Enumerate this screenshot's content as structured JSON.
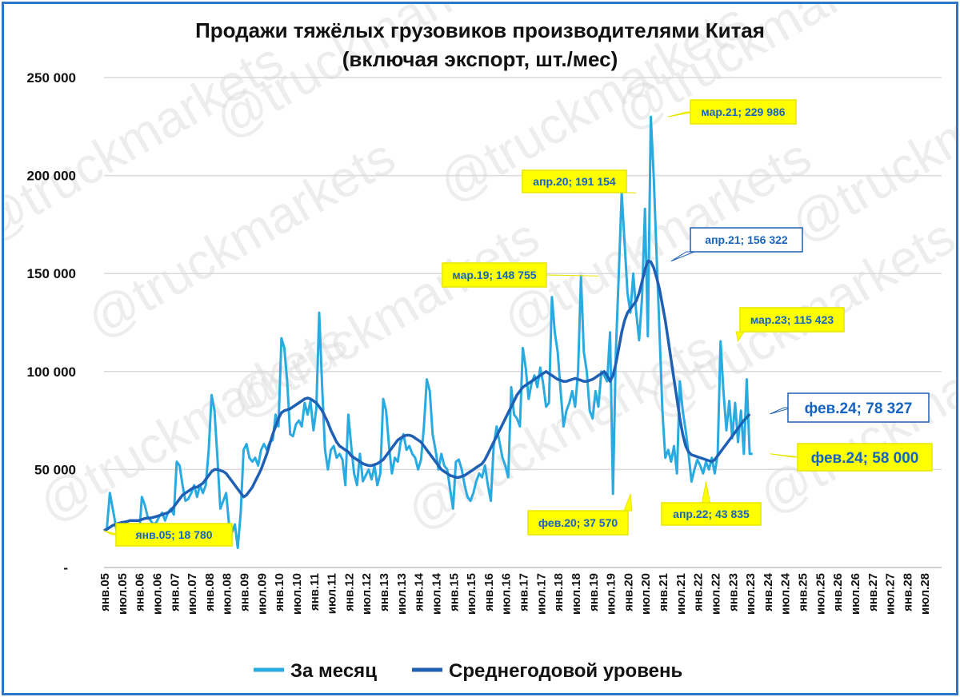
{
  "chart_data": {
    "type": "line",
    "title_line1": "Продажи тяжёлых грузовиков производителями Китая",
    "title_line2": "(включая экспорт, шт./мес)",
    "y_ticks": [
      "250 000",
      "200 000",
      "150 000",
      "100 000",
      "50 000",
      "-"
    ],
    "ylim": [
      0,
      250000
    ],
    "x_labels": [
      "янв.05",
      "июл.05",
      "янв.06",
      "июл.06",
      "янв.07",
      "июл.07",
      "янв.08",
      "июл.08",
      "янв.09",
      "июл.09",
      "янв.10",
      "июл.10",
      "янв.11",
      "июл.11",
      "янв.12",
      "июл.12",
      "янв.13",
      "июл.13",
      "янв.14",
      "июл.14",
      "янв.15",
      "июл.15",
      "янв.16",
      "июл.16",
      "янв.17",
      "июл.17",
      "янв.18",
      "июл.18",
      "янв.19",
      "июл.19",
      "янв.20",
      "июл.20",
      "янв.21",
      "июл.21",
      "янв.22",
      "июл.22",
      "янв.23",
      "июл.23",
      "янв.24",
      "июл.24",
      "янв.25",
      "июл.25",
      "янв.26",
      "июл.26",
      "янв.27",
      "июл.27",
      "янв.28",
      "июл.28"
    ],
    "grid": "horizontal",
    "legend_position": "bottom",
    "series": [
      {
        "name": "За месяц",
        "color": "#29abe2",
        "values": [
          18780,
          20000,
          38000,
          30000,
          22000,
          12000,
          14000,
          18000,
          16000,
          20000,
          16000,
          12000,
          14000,
          36000,
          32000,
          26000,
          24000,
          22000,
          23000,
          26000,
          28000,
          24000,
          28000,
          30000,
          27000,
          54000,
          52000,
          42000,
          34000,
          35000,
          38000,
          42000,
          36000,
          42000,
          38000,
          42000,
          60000,
          88000,
          80000,
          56000,
          30000,
          34000,
          38000,
          22000,
          18000,
          22000,
          10000,
          28000,
          60000,
          63000,
          56000,
          54000,
          56000,
          52000,
          60000,
          63000,
          60000,
          64000,
          65000,
          78000,
          72000,
          117000,
          112000,
          95000,
          68000,
          67000,
          73000,
          75000,
          72000,
          84000,
          78000,
          85000,
          70000,
          81000,
          130000,
          92000,
          60000,
          50000,
          60000,
          62000,
          56000,
          58000,
          55000,
          42000,
          78000,
          62000,
          48000,
          42000,
          58000,
          44000,
          47000,
          50000,
          45000,
          52000,
          42000,
          48000,
          86000,
          80000,
          62000,
          48000,
          56000,
          54000,
          64000,
          68000,
          60000,
          62000,
          58000,
          56000,
          50000,
          55000,
          72000,
          96000,
          90000,
          68000,
          60000,
          50000,
          58000,
          52000,
          50000,
          40000,
          30000,
          54000,
          55000,
          50000,
          42000,
          36000,
          34000,
          38000,
          44000,
          48000,
          46000,
          52000,
          42000,
          34000,
          62000,
          72000,
          64000,
          56000,
          52000,
          46000,
          92000,
          78000,
          76000,
          72000,
          112000,
          102000,
          86000,
          94000,
          98000,
          92000,
          102000,
          94000,
          82000,
          84000,
          138000,
          120000,
          110000,
          90000,
          72000,
          80000,
          84000,
          90000,
          82000,
          100000,
          148755,
          110000,
          100000,
          80000,
          76000,
          90000,
          82000,
          100000,
          98000,
          95000,
          120000,
          37570,
          110000,
          150000,
          191154,
          166000,
          140000,
          130000,
          150000,
          130000,
          116000,
          138000,
          183000,
          118000,
          229986,
          200000,
          160000,
          120000,
          80000,
          56000,
          60000,
          54000,
          62000,
          48000,
          95000,
          80000,
          70000,
          58000,
          43835,
          50000,
          55000,
          52000,
          48000,
          54000,
          50000,
          56000,
          48000,
          58000,
          115423,
          90000,
          70000,
          85000,
          66000,
          84000,
          64000,
          80000,
          58000,
          96000,
          58000,
          58000
        ],
        "values_partial_note": ""
      },
      {
        "name": "Среднегодовой уровень",
        "color": "#1f5fb4",
        "values": [
          18780,
          19500,
          20500,
          21500,
          22000,
          22500,
          23000,
          23200,
          23500,
          24000,
          24000,
          24000,
          24000,
          24500,
          25000,
          25200,
          25300,
          25600,
          26000,
          26500,
          27000,
          27500,
          28000,
          29000,
          31000,
          33000,
          35000,
          37000,
          38000,
          39000,
          40000,
          41000,
          41000,
          42000,
          43000,
          45000,
          47000,
          49000,
          50000,
          50000,
          49500,
          49000,
          48000,
          46000,
          44000,
          42000,
          40000,
          38000,
          36000,
          37000,
          39000,
          41000,
          44000,
          47000,
          50000,
          54000,
          58000,
          63000,
          68000,
          72000,
          76000,
          79000,
          80000,
          80500,
          81000,
          82000,
          83000,
          84000,
          85000,
          86000,
          86500,
          86000,
          85000,
          84000,
          82000,
          80000,
          77000,
          74000,
          70000,
          67000,
          64000,
          62000,
          61000,
          60000,
          59000,
          57000,
          56000,
          55000,
          54000,
          53000,
          52500,
          52000,
          52000,
          52500,
          53000,
          54000,
          55000,
          57000,
          59000,
          61000,
          63000,
          65000,
          66000,
          67000,
          67500,
          67500,
          67000,
          66000,
          65000,
          64000,
          62000,
          60000,
          58000,
          56000,
          54000,
          52000,
          50000,
          49000,
          48000,
          47000,
          46500,
          46000,
          46000,
          46500,
          47000,
          48000,
          49000,
          50000,
          51000,
          52000,
          53000,
          55000,
          58000,
          61000,
          64000,
          67000,
          70000,
          73000,
          76000,
          79000,
          82000,
          85000,
          88000,
          90000,
          92000,
          93000,
          94000,
          95000,
          96000,
          97000,
          98000,
          99000,
          100000,
          99000,
          98000,
          97000,
          96000,
          95500,
          95000,
          95000,
          95500,
          96000,
          96500,
          96000,
          95500,
          95000,
          95000,
          95500,
          96000,
          97000,
          98000,
          99000,
          100000,
          98000,
          95000,
          98000,
          104000,
          112000,
          120000,
          126000,
          130000,
          132000,
          134000,
          136000,
          140000,
          146000,
          152000,
          156322,
          156000,
          153000,
          148000,
          142000,
          134000,
          126000,
          116000,
          106000,
          96000,
          86000,
          76000,
          68000,
          62000,
          59000,
          57500,
          57000,
          56500,
          56000,
          55500,
          55000,
          54500,
          54000,
          55000,
          57000,
          59000,
          61000,
          63000,
          65000,
          67000,
          69000,
          71000,
          73000,
          75000,
          76500,
          78327
        ]
      }
    ],
    "annotations": [
      {
        "label": "янв.05;  18 780",
        "x_index": 0,
        "y": 18780
      },
      {
        "label": "фев.20; 37 570",
        "x_index": 181,
        "y": 37570
      },
      {
        "label": "мар.19; 148 755",
        "x_index": 170,
        "y": 148755
      },
      {
        "label": "апр.20;  191 154",
        "x_index": 183,
        "y": 191154
      },
      {
        "label": "мар.21;  229 986",
        "x_index": 194,
        "y": 229986
      },
      {
        "label": "апр.21;  156 322",
        "x_index": 195,
        "y": 156322
      },
      {
        "label": "апр.22;  43 835",
        "x_index": 207,
        "y": 43835
      },
      {
        "label": "мар.23; 115 423",
        "x_index": 218,
        "y": 115423
      },
      {
        "label": "фев.24;  78 327",
        "x_index": 229,
        "y": 78327
      },
      {
        "label": "фев.24;  58 000",
        "x_index": 229,
        "y": 58000
      }
    ],
    "watermark": "@truckmarkets",
    "legend": [
      {
        "label": "За месяц",
        "color": "#29abe2"
      },
      {
        "label": "Среднегодовой уровень",
        "color": "#1f5fb4"
      }
    ]
  }
}
